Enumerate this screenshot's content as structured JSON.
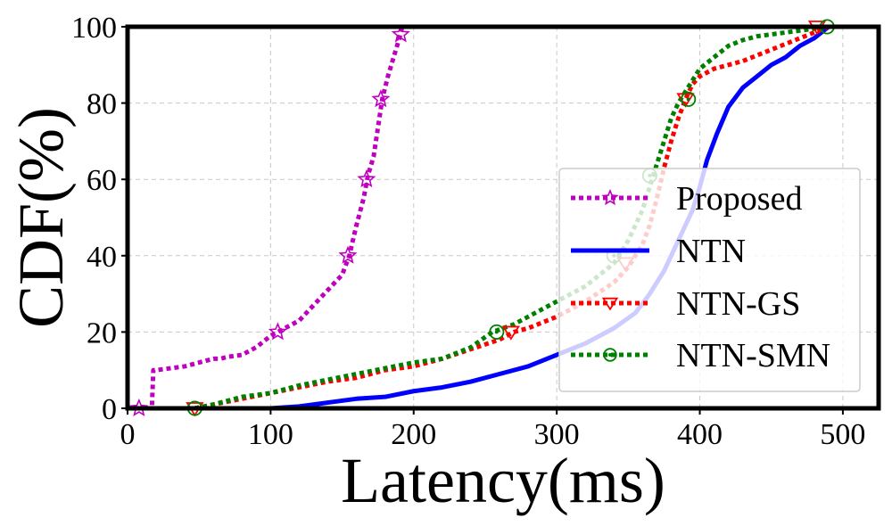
{
  "chart_data": {
    "type": "line",
    "title": "",
    "xlabel": "Latency(ms)",
    "ylabel": "CDF(%)",
    "xlim": [
      0,
      525
    ],
    "ylim": [
      0,
      100
    ],
    "xticks": [
      0,
      100,
      200,
      300,
      400,
      500
    ],
    "yticks": [
      0,
      20,
      40,
      60,
      80,
      100
    ],
    "grid": true,
    "legend_position": "center-right",
    "series": [
      {
        "name": "Proposed",
        "color": "#bf00bf",
        "line_style": "dotted",
        "marker": "star",
        "x": [
          8,
          17,
          18,
          20,
          30,
          40,
          50,
          60,
          65,
          70,
          80,
          90,
          100,
          105,
          110,
          120,
          130,
          140,
          145,
          150,
          155,
          160,
          165,
          168,
          172,
          176,
          178,
          182,
          186,
          190,
          192
        ],
        "y": [
          0,
          0,
          10,
          10,
          10.5,
          11,
          12,
          13,
          13,
          13.5,
          14,
          16,
          19,
          20,
          21,
          23,
          27,
          31,
          33,
          35,
          40,
          48,
          55,
          61,
          66,
          76,
          81,
          87,
          92,
          97,
          100
        ],
        "marker_x": [
          8,
          105,
          154,
          167,
          177,
          191
        ],
        "marker_y": [
          0,
          20,
          40,
          60,
          81,
          98
        ]
      },
      {
        "name": "NTN",
        "color": "#0000ff",
        "line_style": "solid",
        "marker": "none",
        "x": [
          80,
          100,
          120,
          140,
          160,
          180,
          200,
          220,
          240,
          260,
          280,
          300,
          320,
          340,
          355,
          365,
          375,
          385,
          395,
          400,
          405,
          412,
          420,
          430,
          440,
          450,
          460,
          470,
          480,
          490
        ],
        "y": [
          0,
          0,
          0.5,
          1.5,
          2.5,
          3,
          4.5,
          5.5,
          7,
          9,
          11,
          14,
          17,
          21,
          25,
          30,
          36,
          44,
          52,
          58,
          65,
          72,
          79,
          84,
          87,
          90,
          92,
          95,
          97,
          100
        ]
      },
      {
        "name": "NTN-GS",
        "color": "#ff0000",
        "line_style": "dotted",
        "marker": "triangle-down",
        "x": [
          47,
          60,
          80,
          100,
          120,
          140,
          160,
          180,
          200,
          220,
          240,
          260,
          270,
          280,
          300,
          320,
          340,
          350,
          360,
          365,
          370,
          375,
          380,
          385,
          390,
          395,
          400,
          410,
          420,
          430,
          440,
          450,
          460,
          470,
          480,
          490
        ],
        "y": [
          0,
          1,
          2.5,
          4,
          5.5,
          7,
          8,
          10,
          11,
          13,
          15.5,
          18,
          20,
          21,
          24,
          28,
          33,
          37,
          43,
          48,
          55,
          63,
          70,
          76,
          81,
          85,
          87,
          89,
          90,
          91,
          92.5,
          94,
          95.5,
          97,
          98.5,
          100
        ],
        "marker_x": [
          47,
          268,
          348,
          390,
          482
        ],
        "marker_y": [
          0,
          20,
          38,
          81,
          100
        ]
      },
      {
        "name": "NTN-SMN",
        "color": "#008000",
        "line_style": "dotted",
        "marker": "circle-dot",
        "x": [
          47,
          60,
          80,
          100,
          120,
          140,
          160,
          180,
          200,
          220,
          240,
          255,
          270,
          280,
          300,
          320,
          340,
          350,
          360,
          365,
          370,
          375,
          380,
          385,
          390,
          395,
          400,
          410,
          420,
          430,
          440,
          450,
          460,
          470,
          480,
          490
        ],
        "y": [
          0,
          1,
          3,
          4,
          6,
          7.5,
          9,
          10.5,
          12,
          13,
          16,
          20,
          22,
          24,
          28,
          32,
          38,
          44,
          52,
          58,
          64,
          70,
          76,
          80,
          83,
          86,
          89,
          92,
          95,
          96.5,
          97.5,
          98,
          98.5,
          99,
          99.5,
          100
        ],
        "marker_x": [
          47,
          258,
          340,
          365,
          392,
          489
        ],
        "marker_y": [
          0,
          20,
          40,
          61,
          81,
          100
        ]
      }
    ]
  }
}
